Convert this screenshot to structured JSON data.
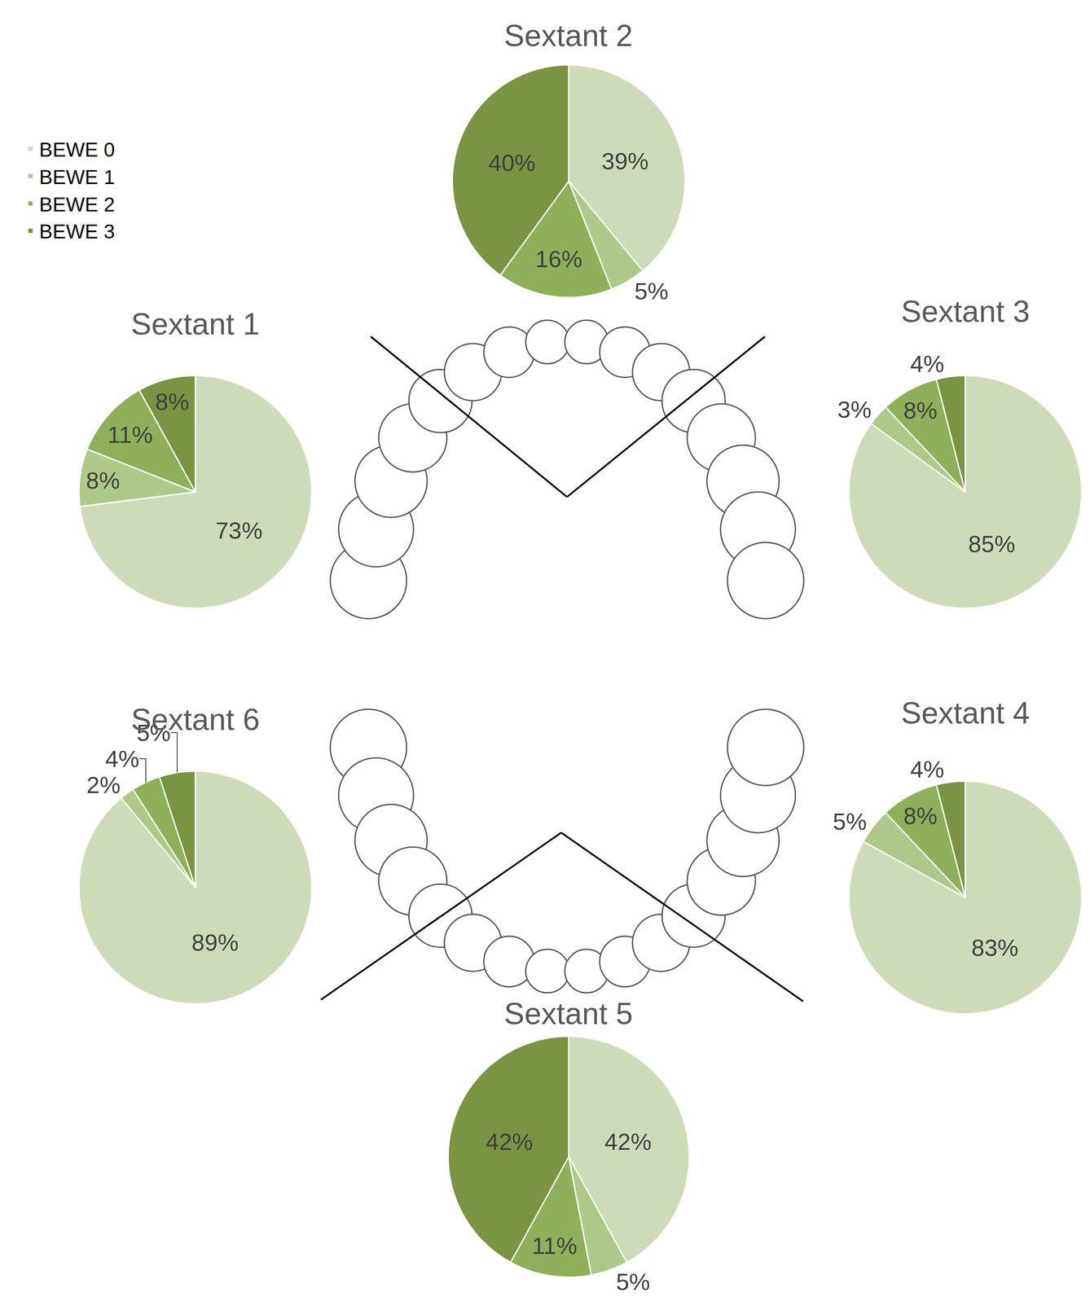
{
  "chart_data": [
    {
      "type": "pie",
      "title": "Sextant 1",
      "legend": "top-left",
      "data_labels": true,
      "categories": [
        "BEWE 0",
        "BEWE 1",
        "BEWE 2",
        "BEWE 3"
      ],
      "values": [
        73,
        8,
        11,
        8
      ],
      "value_labels": [
        "73%",
        "8%",
        "11%",
        "8%"
      ],
      "colors": [
        "#cddcb8",
        "#adc98a",
        "#8fb05a",
        "#7a9444"
      ]
    },
    {
      "type": "pie",
      "title": "Sextant 2",
      "data_labels": true,
      "categories": [
        "BEWE 0",
        "BEWE 1",
        "BEWE 2",
        "BEWE 3"
      ],
      "values": [
        39,
        5,
        16,
        40
      ],
      "value_labels": [
        "39%",
        "5%",
        "16%",
        "40%"
      ],
      "colors": [
        "#cddcb8",
        "#adc98a",
        "#8fb05a",
        "#7a9444"
      ]
    },
    {
      "type": "pie",
      "title": "Sextant 3",
      "data_labels": true,
      "categories": [
        "BEWE 0",
        "BEWE 1",
        "BEWE 2",
        "BEWE 3"
      ],
      "values": [
        85,
        3,
        8,
        4
      ],
      "value_labels": [
        "85%",
        "3%",
        "8%",
        "4%"
      ],
      "colors": [
        "#cddcb8",
        "#adc98a",
        "#8fb05a",
        "#7a9444"
      ]
    },
    {
      "type": "pie",
      "title": "Sextant 4",
      "data_labels": true,
      "categories": [
        "BEWE 0",
        "BEWE 1",
        "BEWE 2",
        "BEWE 3"
      ],
      "values": [
        83,
        5,
        8,
        4
      ],
      "value_labels": [
        "83%",
        "5%",
        "8%",
        "4%"
      ],
      "colors": [
        "#cddcb8",
        "#adc98a",
        "#8fb05a",
        "#7a9444"
      ]
    },
    {
      "type": "pie",
      "title": "Sextant 5",
      "data_labels": true,
      "categories": [
        "BEWE 0",
        "BEWE 1",
        "BEWE 2",
        "BEWE 3"
      ],
      "values": [
        42,
        5,
        11,
        42
      ],
      "value_labels": [
        "42%",
        "5%",
        "11%",
        "42%"
      ],
      "colors": [
        "#cddcb8",
        "#adc98a",
        "#8fb05a",
        "#7a9444"
      ]
    },
    {
      "type": "pie",
      "title": "Sextant 6",
      "data_labels": true,
      "categories": [
        "BEWE 0",
        "BEWE 1",
        "BEWE 2",
        "BEWE 3"
      ],
      "values": [
        89,
        2,
        4,
        5
      ],
      "value_labels": [
        "89%",
        "2%",
        "4%",
        "5%"
      ],
      "colors": [
        "#cddcb8",
        "#adc98a",
        "#8fb05a",
        "#7a9444"
      ]
    }
  ]
}
